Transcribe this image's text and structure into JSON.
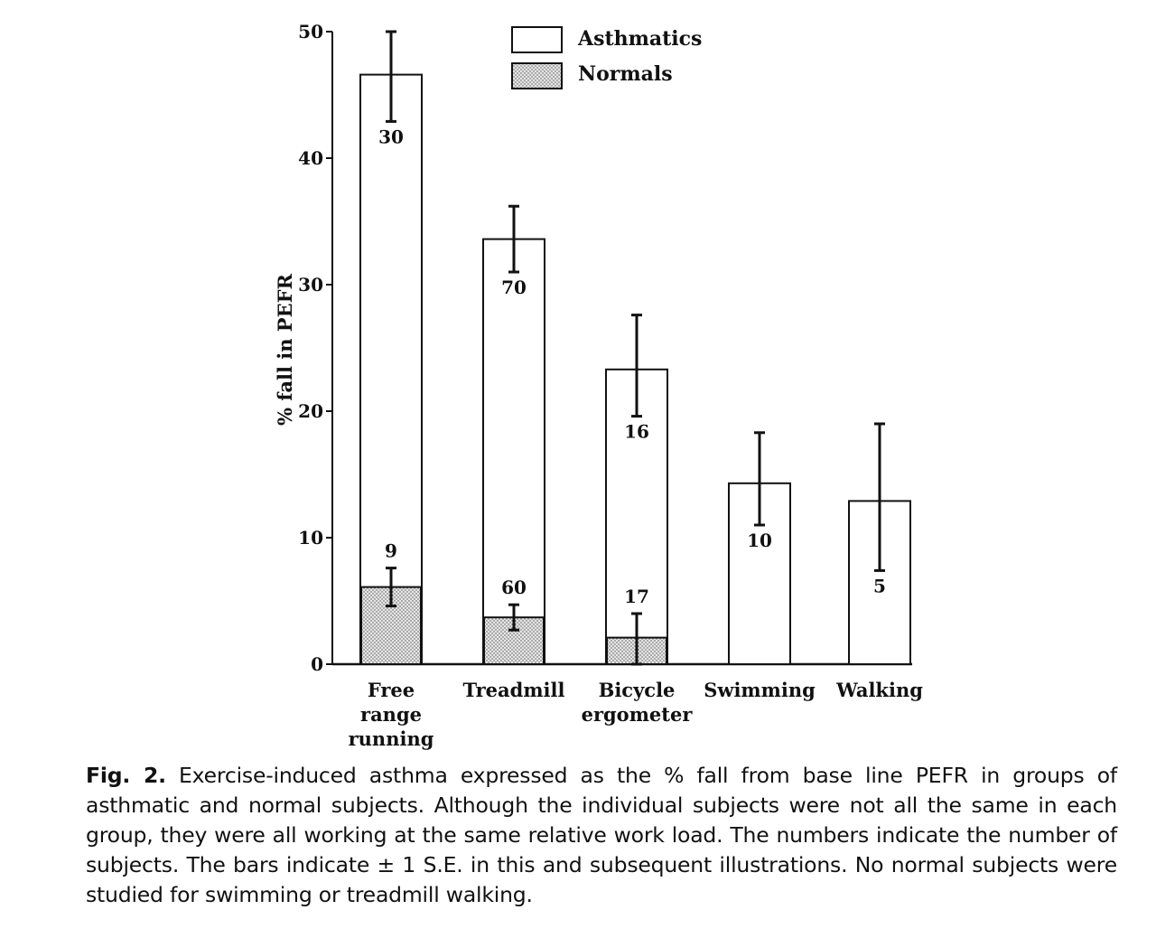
{
  "chart_data": {
    "type": "bar",
    "ylabel": "% fall in PEFR",
    "ylim": [
      0,
      50
    ],
    "yticks": [
      "0",
      "10",
      "20",
      "30",
      "40",
      "50"
    ],
    "categories": [
      [
        "Free",
        "range",
        "running"
      ],
      [
        "Treadmill"
      ],
      [
        "Bicycle",
        "ergometer"
      ],
      [
        "Swimming"
      ],
      [
        "Walking"
      ]
    ],
    "legend": {
      "position": "top-center",
      "entries": [
        "Asthmatics",
        "Normals"
      ]
    },
    "series": [
      {
        "name": "Asthmatics",
        "fill": "#ffffff",
        "values": [
          46.6,
          33.6,
          23.3,
          14.3,
          12.9
        ],
        "error_low": [
          42.9,
          31.0,
          19.6,
          11.0,
          7.4
        ],
        "error_high": [
          50.0,
          36.2,
          27.6,
          18.3,
          19.0
        ],
        "n_labels": [
          "30",
          "70",
          "16",
          "10",
          "5"
        ]
      },
      {
        "name": "Normals",
        "fill": "#c8c8c8",
        "values": [
          6.1,
          3.7,
          2.1,
          null,
          null
        ],
        "error_low": [
          4.6,
          2.7,
          0.0,
          null,
          null
        ],
        "error_high": [
          7.6,
          4.7,
          4.0,
          null,
          null
        ],
        "n_labels": [
          "9",
          "60",
          "17",
          null,
          null
        ]
      }
    ]
  },
  "caption": {
    "label": "Fig. 2.",
    "text": "Exercise-induced asthma expressed as the % fall from base line PEFR in groups of asthmatic and normal subjects. Although the individual subjects were not all the same in each group, they were all working at the same relative work load. The numbers indicate the number of subjects. The bars indicate ± 1 S.E. in this and subsequent illustrations. No normal subjects were studied for swimming or treadmill walking."
  }
}
